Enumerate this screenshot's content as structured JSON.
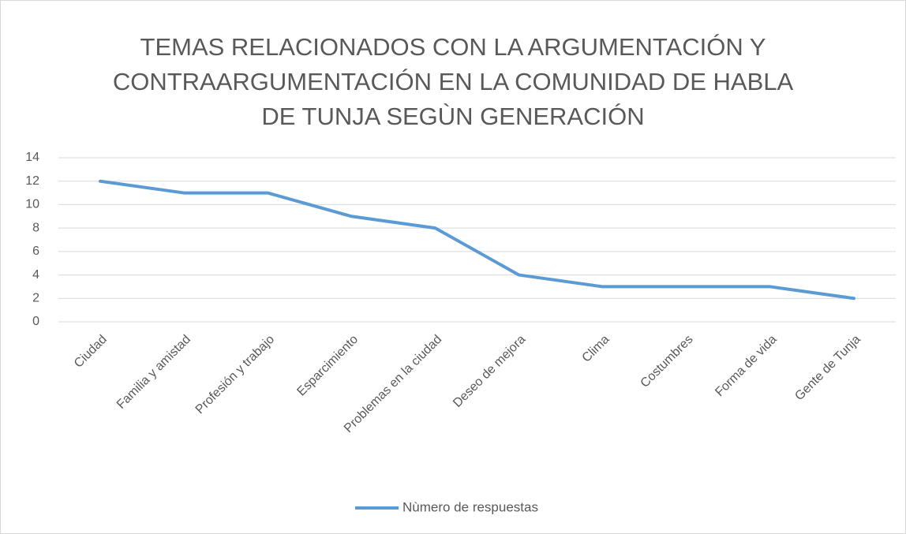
{
  "chart_data": {
    "type": "line",
    "title": [
      "TEMAS RELACIONADOS CON LA ARGUMENTACIÓN Y",
      "CONTRAARGUMENTACIÓN EN LA COMUNIDAD DE HABLA",
      "DE TUNJA SEGÙN GENERACIÓN"
    ],
    "categories": [
      "Ciudad",
      "Familia y amistad",
      "Profesión y trabajo",
      "Esparcimiento",
      "Problemas en la ciudad",
      "Deseo de mejora",
      "Clima",
      "Costumbres",
      "Forma de vida",
      "Gente de Tunja"
    ],
    "series": [
      {
        "name": "Nùmero de respuestas",
        "color": "#5b9bd5",
        "values": [
          12,
          11,
          11,
          9,
          8,
          4,
          3,
          3,
          3,
          2
        ]
      }
    ],
    "ylim": [
      0,
      14
    ],
    "yticks": [
      0,
      2,
      4,
      6,
      8,
      10,
      12,
      14
    ],
    "grid": true,
    "legend": "bottom"
  }
}
